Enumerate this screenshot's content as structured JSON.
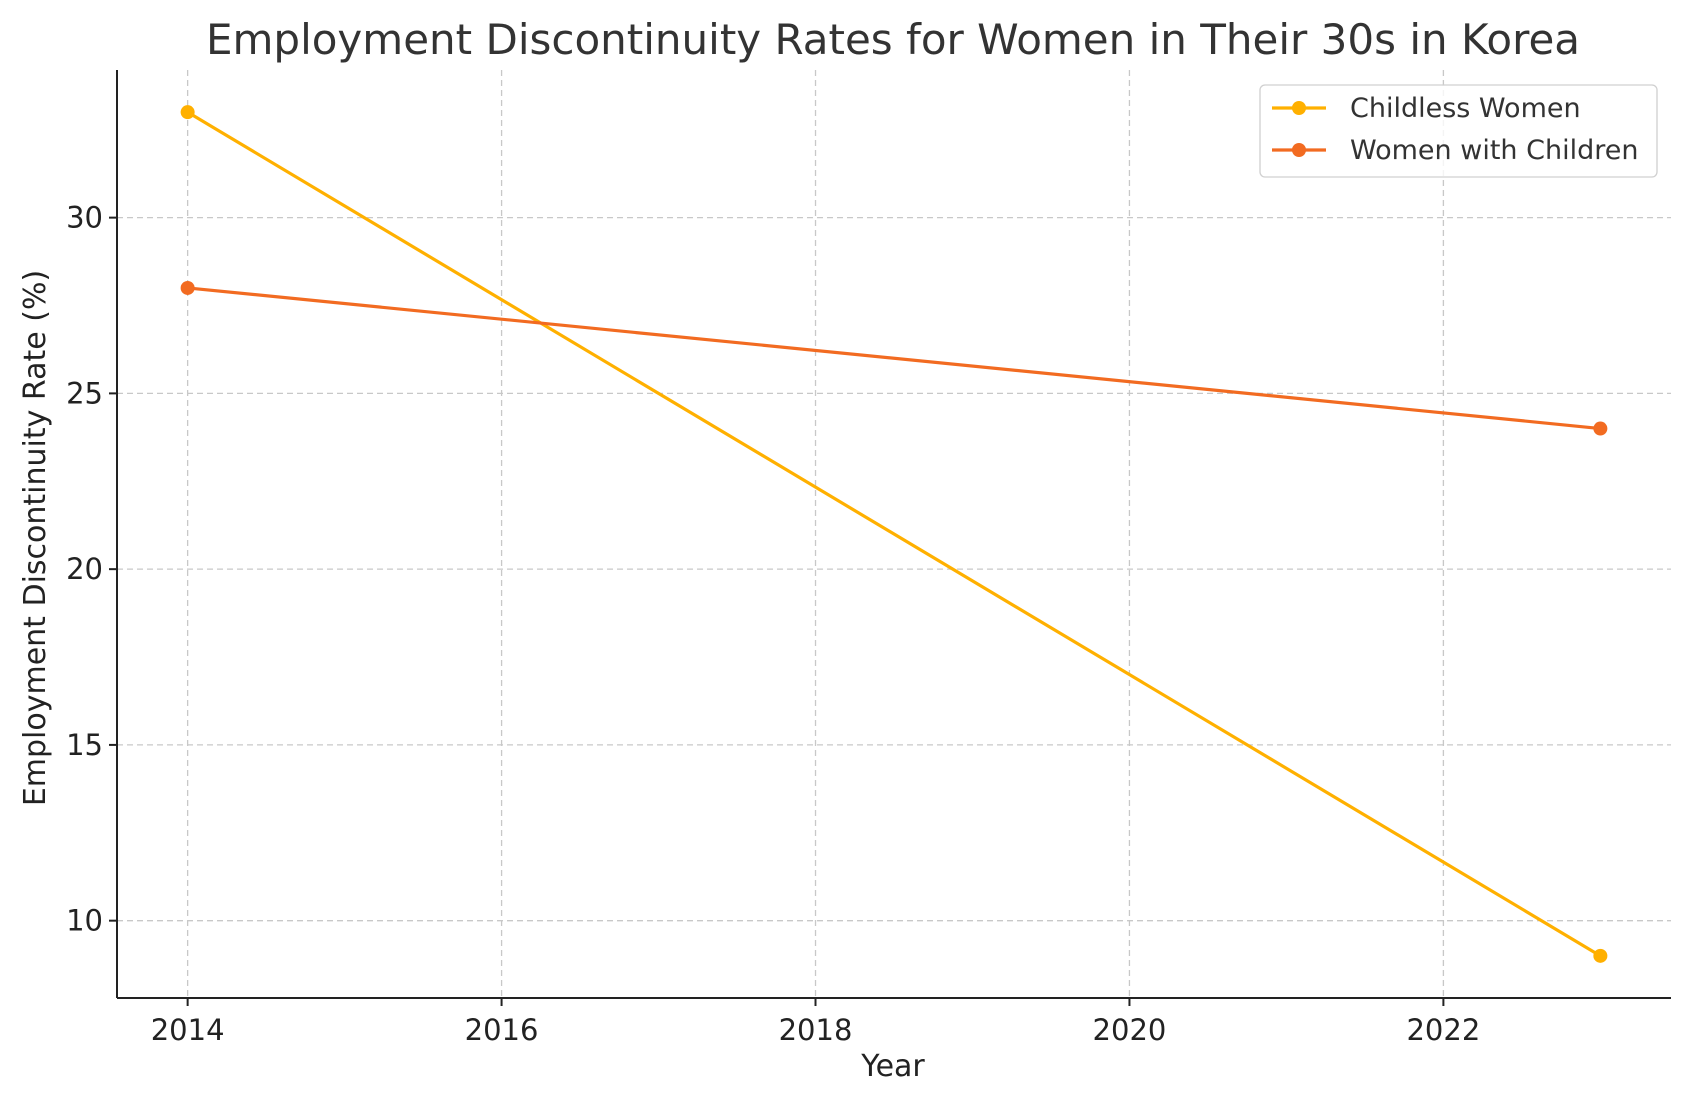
{
  "chart_data": {
    "type": "line",
    "title": "Employment Discontinuity Rates for Women in Their 30s in Korea",
    "xlabel": "Year",
    "ylabel": "Employment Discontinuity Rate (%)",
    "xlim": [
      2013.55,
      2023.45
    ],
    "ylim": [
      7.8,
      34.2
    ],
    "xticks": [
      2014,
      2016,
      2018,
      2020,
      2022
    ],
    "yticks": [
      10,
      15,
      20,
      25,
      30
    ],
    "grid": true,
    "legend_position": "top-right",
    "series": [
      {
        "name": "Childless Women",
        "color": "#FFB000",
        "x": [
          2014,
          2023
        ],
        "y": [
          33,
          9
        ]
      },
      {
        "name": "Women with Children",
        "color": "#F26B21",
        "x": [
          2014,
          2023
        ],
        "y": [
          28,
          24
        ]
      }
    ]
  }
}
